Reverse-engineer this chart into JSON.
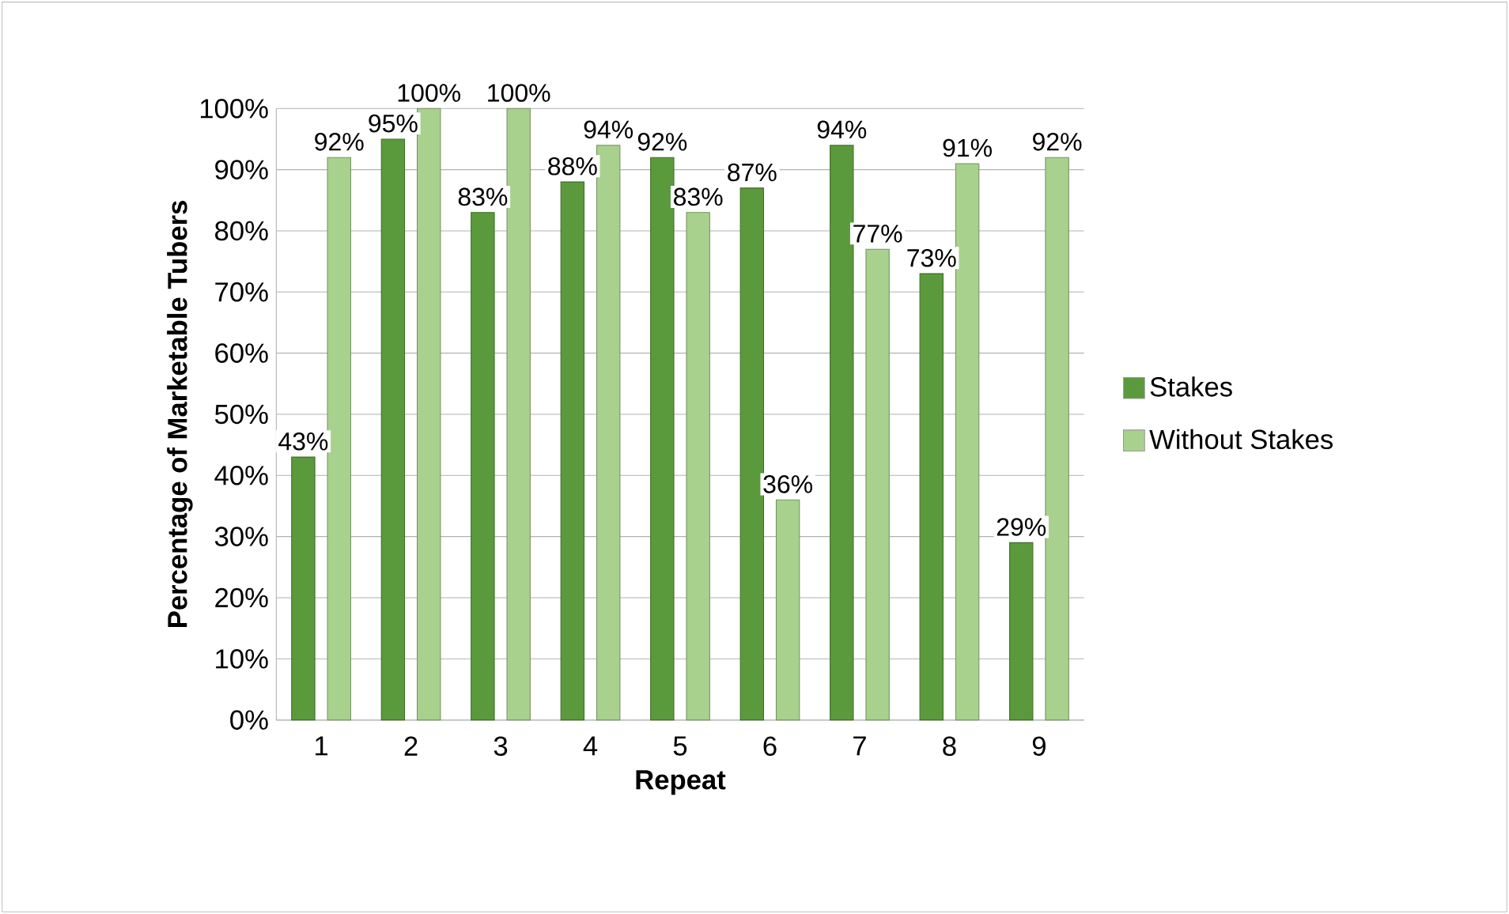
{
  "chart_data": {
    "type": "bar",
    "xlabel": "Repeat",
    "ylabel": "Percentage of Marketable Tubers",
    "categories": [
      "1",
      "2",
      "3",
      "4",
      "5",
      "6",
      "7",
      "8",
      "9"
    ],
    "series": [
      {
        "name": "Stakes",
        "color": "#5b9a3c",
        "values": [
          43,
          95,
          83,
          88,
          92,
          87,
          94,
          73,
          29
        ],
        "value_labels": [
          "43%",
          "95%",
          "83%",
          "88%",
          "92%",
          "87%",
          "94%",
          "73%",
          "29%"
        ]
      },
      {
        "name": "Without Stakes",
        "color": "#a9d18e",
        "values": [
          92,
          100,
          100,
          94,
          83,
          36,
          77,
          91,
          92
        ],
        "value_labels": [
          "92%",
          "100%",
          "100%",
          "94%",
          "83%",
          "36%",
          "77%",
          "91%",
          "92%"
        ]
      }
    ],
    "ylim": [
      0,
      100
    ],
    "yticks": [
      {
        "value": 0,
        "label": "0%"
      },
      {
        "value": 10,
        "label": "10%"
      },
      {
        "value": 20,
        "label": "20%"
      },
      {
        "value": 30,
        "label": "30%"
      },
      {
        "value": 40,
        "label": "40%"
      },
      {
        "value": 50,
        "label": "50%"
      },
      {
        "value": 60,
        "label": "60%"
      },
      {
        "value": 70,
        "label": "70%"
      },
      {
        "value": 80,
        "label": "80%"
      },
      {
        "value": 90,
        "label": "90%"
      },
      {
        "value": 100,
        "label": "100%"
      }
    ],
    "grid": "y",
    "legend": "right"
  }
}
